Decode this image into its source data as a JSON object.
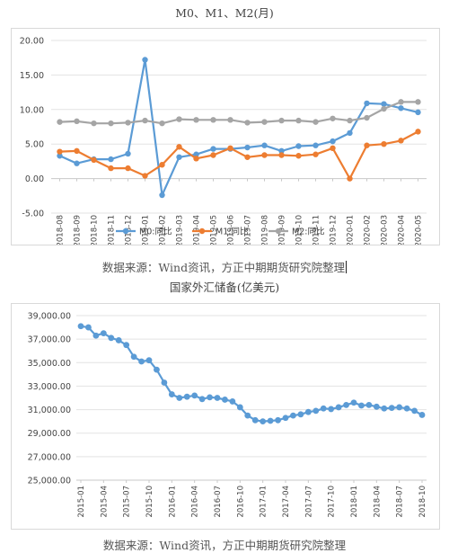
{
  "chart1": {
    "title": "M0、M1、M2(月)",
    "source": "数据来源：Wind资讯，方正中期期货研究院整理",
    "chart_data": {
      "type": "line",
      "title": "M0、M1、M2(月)",
      "categories": [
        "2018-08",
        "2018-09",
        "2018-10",
        "2018-11",
        "2018-12",
        "2019-01",
        "2019-02",
        "2019-03",
        "2019-04",
        "2019-05",
        "2019-06",
        "2019-07",
        "2019-08",
        "2019-09",
        "2019-10",
        "2019-11",
        "2019-12",
        "2020-01",
        "2020-02",
        "2020-03",
        "2020-04",
        "2020-05"
      ],
      "series": [
        {
          "name": "M0:同比",
          "color": "#5b9bd5",
          "values": [
            3.3,
            2.2,
            2.8,
            2.8,
            3.6,
            17.2,
            -2.4,
            3.1,
            3.5,
            4.3,
            4.3,
            4.5,
            4.8,
            4.0,
            4.7,
            4.8,
            5.4,
            6.6,
            10.9,
            10.8,
            10.2,
            9.6
          ]
        },
        {
          "name": "M1:同比",
          "color": "#ed7d31",
          "values": [
            3.9,
            4.0,
            2.7,
            1.5,
            1.5,
            0.4,
            2.0,
            4.6,
            2.9,
            3.4,
            4.4,
            3.1,
            3.4,
            3.4,
            3.3,
            3.5,
            4.4,
            0.0,
            4.8,
            5.0,
            5.5,
            6.8
          ]
        },
        {
          "name": "M2:同比",
          "color": "#a5a5a5",
          "values": [
            8.2,
            8.3,
            8.0,
            8.0,
            8.1,
            8.4,
            8.0,
            8.6,
            8.5,
            8.5,
            8.5,
            8.1,
            8.2,
            8.4,
            8.4,
            8.2,
            8.7,
            8.4,
            8.8,
            10.1,
            11.1,
            11.1
          ]
        }
      ],
      "yticks": [
        "20.00",
        "15.00",
        "10.00",
        "5.00",
        "0.00",
        "-5.00"
      ],
      "ylim": [
        -5,
        20
      ],
      "legend": "bottom",
      "grid": true
    }
  },
  "chart2": {
    "title": "国家外汇储备(亿美元)",
    "source": "数据来源：Wind资讯，方正中期期货研究院整理",
    "chart_data": {
      "type": "line",
      "title": "国家外汇储备(亿美元)",
      "xticks": [
        "2015-01",
        "2015-04",
        "2015-07",
        "2015-10",
        "2016-01",
        "2016-04",
        "2016-07",
        "2016-10",
        "2017-01",
        "2017-04",
        "2017-07",
        "2017-10",
        "2018-01",
        "2018-04",
        "2018-07",
        "2018-10"
      ],
      "months": [
        "2015-01",
        "2015-02",
        "2015-03",
        "2015-04",
        "2015-05",
        "2015-06",
        "2015-07",
        "2015-08",
        "2015-09",
        "2015-10",
        "2015-11",
        "2015-12",
        "2016-01",
        "2016-02",
        "2016-03",
        "2016-04",
        "2016-05",
        "2016-06",
        "2016-07",
        "2016-08",
        "2016-09",
        "2016-10",
        "2016-11",
        "2016-12",
        "2017-01",
        "2017-02",
        "2017-03",
        "2017-04",
        "2017-05",
        "2017-06",
        "2017-07",
        "2017-08",
        "2017-09",
        "2017-10",
        "2017-11",
        "2017-12",
        "2018-01",
        "2018-02",
        "2018-03",
        "2018-04",
        "2018-05",
        "2018-06",
        "2018-07",
        "2018-08",
        "2018-09",
        "2018-10"
      ],
      "series": [
        {
          "name": "",
          "color": "#5b9bd5",
          "values": [
            38100,
            38000,
            37300,
            37500,
            37100,
            36900,
            36500,
            35500,
            35100,
            35200,
            34400,
            33300,
            32300,
            32000,
            32100,
            32200,
            31900,
            32050,
            32000,
            31850,
            31700,
            31200,
            30500,
            30100,
            30000,
            30050,
            30100,
            30300,
            30500,
            30600,
            30800,
            30900,
            31100,
            31050,
            31200,
            31400,
            31600,
            31350,
            31400,
            31250,
            31100,
            31150,
            31200,
            31100,
            30900,
            30550
          ]
        }
      ],
      "yticks": [
        "39,000.00",
        "37,000.00",
        "35,000.00",
        "33,000.00",
        "31,000.00",
        "29,000.00",
        "27,000.00",
        "25,000.00"
      ],
      "ylim": [
        25000,
        39000
      ],
      "grid": true
    }
  }
}
